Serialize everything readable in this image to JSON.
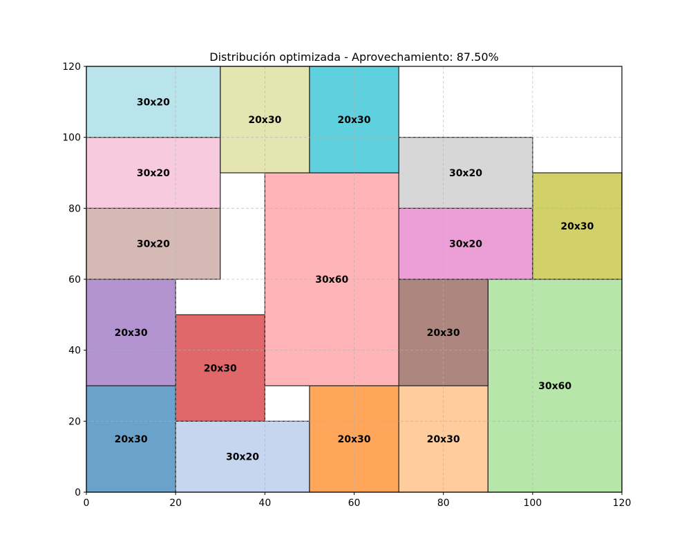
{
  "chart_data": {
    "type": "rectangle-layout",
    "title": "Distribución optimizada - Aprovechamiento: 87.50%",
    "xlabel": "",
    "ylabel": "",
    "xlim": [
      0,
      120
    ],
    "ylim": [
      0,
      120
    ],
    "xticks": [
      0,
      20,
      40,
      60,
      80,
      100,
      120
    ],
    "yticks": [
      0,
      20,
      40,
      60,
      80,
      100,
      120
    ],
    "grid": true,
    "rectangles": [
      {
        "label": "20x30",
        "x": 0,
        "y": 0,
        "w": 20,
        "h": 30,
        "color": "#6aa2cc"
      },
      {
        "label": "30x20",
        "x": 20,
        "y": 0,
        "w": 30,
        "h": 20,
        "color": "#c6d6ee"
      },
      {
        "label": "20x30",
        "x": 50,
        "y": 0,
        "w": 20,
        "h": 30,
        "color": "#ffa65a"
      },
      {
        "label": "20x30",
        "x": 70,
        "y": 0,
        "w": 20,
        "h": 30,
        "color": "#ffcc9e"
      },
      {
        "label": "30x60",
        "x": 90,
        "y": 0,
        "w": 30,
        "h": 60,
        "color": "#b6e6aa"
      },
      {
        "label": "20x30",
        "x": 20,
        "y": 20,
        "w": 20,
        "h": 30,
        "color": "#e0686a"
      },
      {
        "label": "20x30",
        "x": 0,
        "y": 30,
        "w": 20,
        "h": 30,
        "color": "#b394d0"
      },
      {
        "label": "30x60",
        "x": 40,
        "y": 30,
        "w": 30,
        "h": 60,
        "color": "#ffb4b8"
      },
      {
        "label": "20x30",
        "x": 70,
        "y": 30,
        "w": 20,
        "h": 30,
        "color": "#ad877f"
      },
      {
        "label": "30x20",
        "x": 0,
        "y": 60,
        "w": 30,
        "h": 20,
        "color": "#d5b9b4"
      },
      {
        "label": "30x20",
        "x": 70,
        "y": 60,
        "w": 30,
        "h": 20,
        "color": "#eb9fd6"
      },
      {
        "label": "20x30",
        "x": 100,
        "y": 60,
        "w": 20,
        "h": 30,
        "color": "#d2d069"
      },
      {
        "label": "30x20",
        "x": 0,
        "y": 80,
        "w": 30,
        "h": 20,
        "color": "#f7cade"
      },
      {
        "label": "30x20",
        "x": 70,
        "y": 80,
        "w": 30,
        "h": 20,
        "color": "#d7d7d7"
      },
      {
        "label": "20x30",
        "x": 30,
        "y": 90,
        "w": 20,
        "h": 30,
        "color": "#e4e5b0"
      },
      {
        "label": "20x30",
        "x": 50,
        "y": 90,
        "w": 20,
        "h": 30,
        "color": "#5fd0de"
      },
      {
        "label": "30x20",
        "x": 0,
        "y": 100,
        "w": 30,
        "h": 20,
        "color": "#bae4ec"
      }
    ]
  }
}
